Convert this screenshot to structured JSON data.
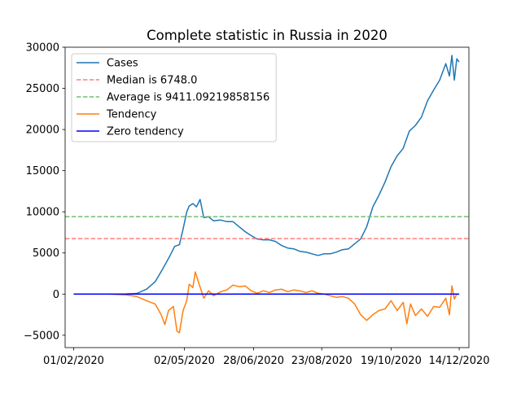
{
  "chart_data": {
    "type": "line",
    "title": "Complete statistic in Russia in 2020",
    "xlabel": "",
    "ylabel": "",
    "x_start": "01/02/2020",
    "x_end": "14/12/2020",
    "xlim": [
      "25/01/2020",
      "22/12/2020"
    ],
    "ylim": [
      -6500,
      30000
    ],
    "x_ticks": [
      "01/02/2020",
      "02/05/2020",
      "28/06/2020",
      "23/08/2020",
      "19/10/2020",
      "14/12/2020"
    ],
    "y_ticks": [
      -5000,
      0,
      5000,
      10000,
      15000,
      20000,
      25000,
      30000
    ],
    "y_tick_labels": [
      "−5000",
      "0",
      "5000",
      "10000",
      "15000",
      "20000",
      "25000",
      "30000"
    ],
    "grid": false,
    "legend_position": "top-left",
    "series": [
      {
        "name": "Cases",
        "color": "#1f77b4",
        "style": "solid",
        "points": [
          [
            "01/02/2020",
            0
          ],
          [
            "01/03/2020",
            0
          ],
          [
            "15/03/2020",
            20
          ],
          [
            "24/03/2020",
            80
          ],
          [
            "01/04/2020",
            600
          ],
          [
            "08/04/2020",
            1500
          ],
          [
            "14/04/2020",
            3000
          ],
          [
            "20/04/2020",
            4600
          ],
          [
            "24/04/2020",
            5800
          ],
          [
            "28/04/2020",
            6000
          ],
          [
            "01/05/2020",
            7900
          ],
          [
            "04/05/2020",
            10000
          ],
          [
            "06/05/2020",
            10700
          ],
          [
            "09/05/2020",
            11000
          ],
          [
            "12/05/2020",
            10600
          ],
          [
            "15/05/2020",
            11500
          ],
          [
            "18/05/2020",
            9300
          ],
          [
            "22/05/2020",
            9400
          ],
          [
            "26/05/2020",
            8900
          ],
          [
            "01/06/2020",
            9000
          ],
          [
            "06/06/2020",
            8800
          ],
          [
            "11/06/2020",
            8800
          ],
          [
            "16/06/2020",
            8200
          ],
          [
            "21/06/2020",
            7600
          ],
          [
            "26/06/2020",
            7100
          ],
          [
            "01/07/2020",
            6700
          ],
          [
            "06/07/2020",
            6600
          ],
          [
            "11/07/2020",
            6600
          ],
          [
            "16/07/2020",
            6400
          ],
          [
            "21/07/2020",
            5900
          ],
          [
            "26/07/2020",
            5600
          ],
          [
            "31/07/2020",
            5500
          ],
          [
            "05/08/2020",
            5200
          ],
          [
            "10/08/2020",
            5100
          ],
          [
            "15/08/2020",
            4900
          ],
          [
            "20/08/2020",
            4700
          ],
          [
            "25/08/2020",
            4900
          ],
          [
            "30/08/2020",
            4900
          ],
          [
            "04/09/2020",
            5100
          ],
          [
            "09/09/2020",
            5400
          ],
          [
            "14/09/2020",
            5500
          ],
          [
            "19/09/2020",
            6100
          ],
          [
            "24/09/2020",
            6700
          ],
          [
            "29/09/2020",
            8200
          ],
          [
            "04/10/2020",
            10600
          ],
          [
            "09/10/2020",
            12000
          ],
          [
            "14/10/2020",
            13600
          ],
          [
            "19/10/2020",
            15500
          ],
          [
            "24/10/2020",
            16800
          ],
          [
            "29/10/2020",
            17700
          ],
          [
            "03/11/2020",
            19800
          ],
          [
            "08/11/2020",
            20500
          ],
          [
            "13/11/2020",
            21500
          ],
          [
            "18/11/2020",
            23500
          ],
          [
            "23/11/2020",
            24800
          ],
          [
            "28/11/2020",
            26000
          ],
          [
            "03/12/2020",
            28000
          ],
          [
            "06/12/2020",
            26500
          ],
          [
            "08/12/2020",
            29000
          ],
          [
            "10/12/2020",
            26000
          ],
          [
            "12/12/2020",
            28600
          ],
          [
            "14/12/2020",
            28200
          ]
        ]
      },
      {
        "name": "Median is 6748.0",
        "color": "#ff7f7f",
        "style": "dashed",
        "constant": 6748.0
      },
      {
        "name": "Average is 9411.09219858156",
        "color": "#77bb77",
        "style": "dashed",
        "constant": 9411.09219858156
      },
      {
        "name": "Tendency",
        "color": "#ff7f0e",
        "style": "solid",
        "points": [
          [
            "01/02/2020",
            0
          ],
          [
            "01/03/2020",
            0
          ],
          [
            "15/03/2020",
            -100
          ],
          [
            "24/03/2020",
            -300
          ],
          [
            "01/04/2020",
            -800
          ],
          [
            "08/04/2020",
            -1200
          ],
          [
            "13/04/2020",
            -2500
          ],
          [
            "16/04/2020",
            -3700
          ],
          [
            "19/04/2020",
            -2000
          ],
          [
            "23/04/2020",
            -1500
          ],
          [
            "26/04/2020",
            -4500
          ],
          [
            "28/04/2020",
            -4700
          ],
          [
            "01/05/2020",
            -2000
          ],
          [
            "04/05/2020",
            -800
          ],
          [
            "06/05/2020",
            1200
          ],
          [
            "09/05/2020",
            800
          ],
          [
            "11/05/2020",
            2700
          ],
          [
            "14/05/2020",
            1300
          ],
          [
            "18/05/2020",
            -500
          ],
          [
            "22/05/2020",
            400
          ],
          [
            "26/05/2020",
            -200
          ],
          [
            "01/06/2020",
            300
          ],
          [
            "06/06/2020",
            500
          ],
          [
            "11/06/2020",
            1100
          ],
          [
            "16/06/2020",
            900
          ],
          [
            "21/06/2020",
            1000
          ],
          [
            "26/06/2020",
            400
          ],
          [
            "01/07/2020",
            100
          ],
          [
            "06/07/2020",
            400
          ],
          [
            "11/07/2020",
            200
          ],
          [
            "16/07/2020",
            500
          ],
          [
            "21/07/2020",
            600
          ],
          [
            "26/07/2020",
            300
          ],
          [
            "31/07/2020",
            500
          ],
          [
            "05/08/2020",
            400
          ],
          [
            "10/08/2020",
            200
          ],
          [
            "15/08/2020",
            400
          ],
          [
            "20/08/2020",
            100
          ],
          [
            "25/08/2020",
            0
          ],
          [
            "30/08/2020",
            -200
          ],
          [
            "04/09/2020",
            -400
          ],
          [
            "09/09/2020",
            -300
          ],
          [
            "14/09/2020",
            -500
          ],
          [
            "19/09/2020",
            -1200
          ],
          [
            "24/09/2020",
            -2500
          ],
          [
            "29/09/2020",
            -3200
          ],
          [
            "04/10/2020",
            -2500
          ],
          [
            "09/10/2020",
            -2000
          ],
          [
            "14/10/2020",
            -1800
          ],
          [
            "19/10/2020",
            -800
          ],
          [
            "24/10/2020",
            -2000
          ],
          [
            "29/10/2020",
            -1000
          ],
          [
            "01/11/2020",
            -3600
          ],
          [
            "04/11/2020",
            -1200
          ],
          [
            "08/11/2020",
            -2600
          ],
          [
            "13/11/2020",
            -1800
          ],
          [
            "18/11/2020",
            -2700
          ],
          [
            "23/11/2020",
            -1500
          ],
          [
            "28/11/2020",
            -1600
          ],
          [
            "03/12/2020",
            -500
          ],
          [
            "06/12/2020",
            -2500
          ],
          [
            "08/12/2020",
            1000
          ],
          [
            "10/12/2020",
            -600
          ],
          [
            "12/12/2020",
            0
          ],
          [
            "14/12/2020",
            0
          ]
        ]
      },
      {
        "name": "Zero tendency",
        "color": "#0000ff",
        "style": "solid",
        "constant": 0
      }
    ]
  }
}
